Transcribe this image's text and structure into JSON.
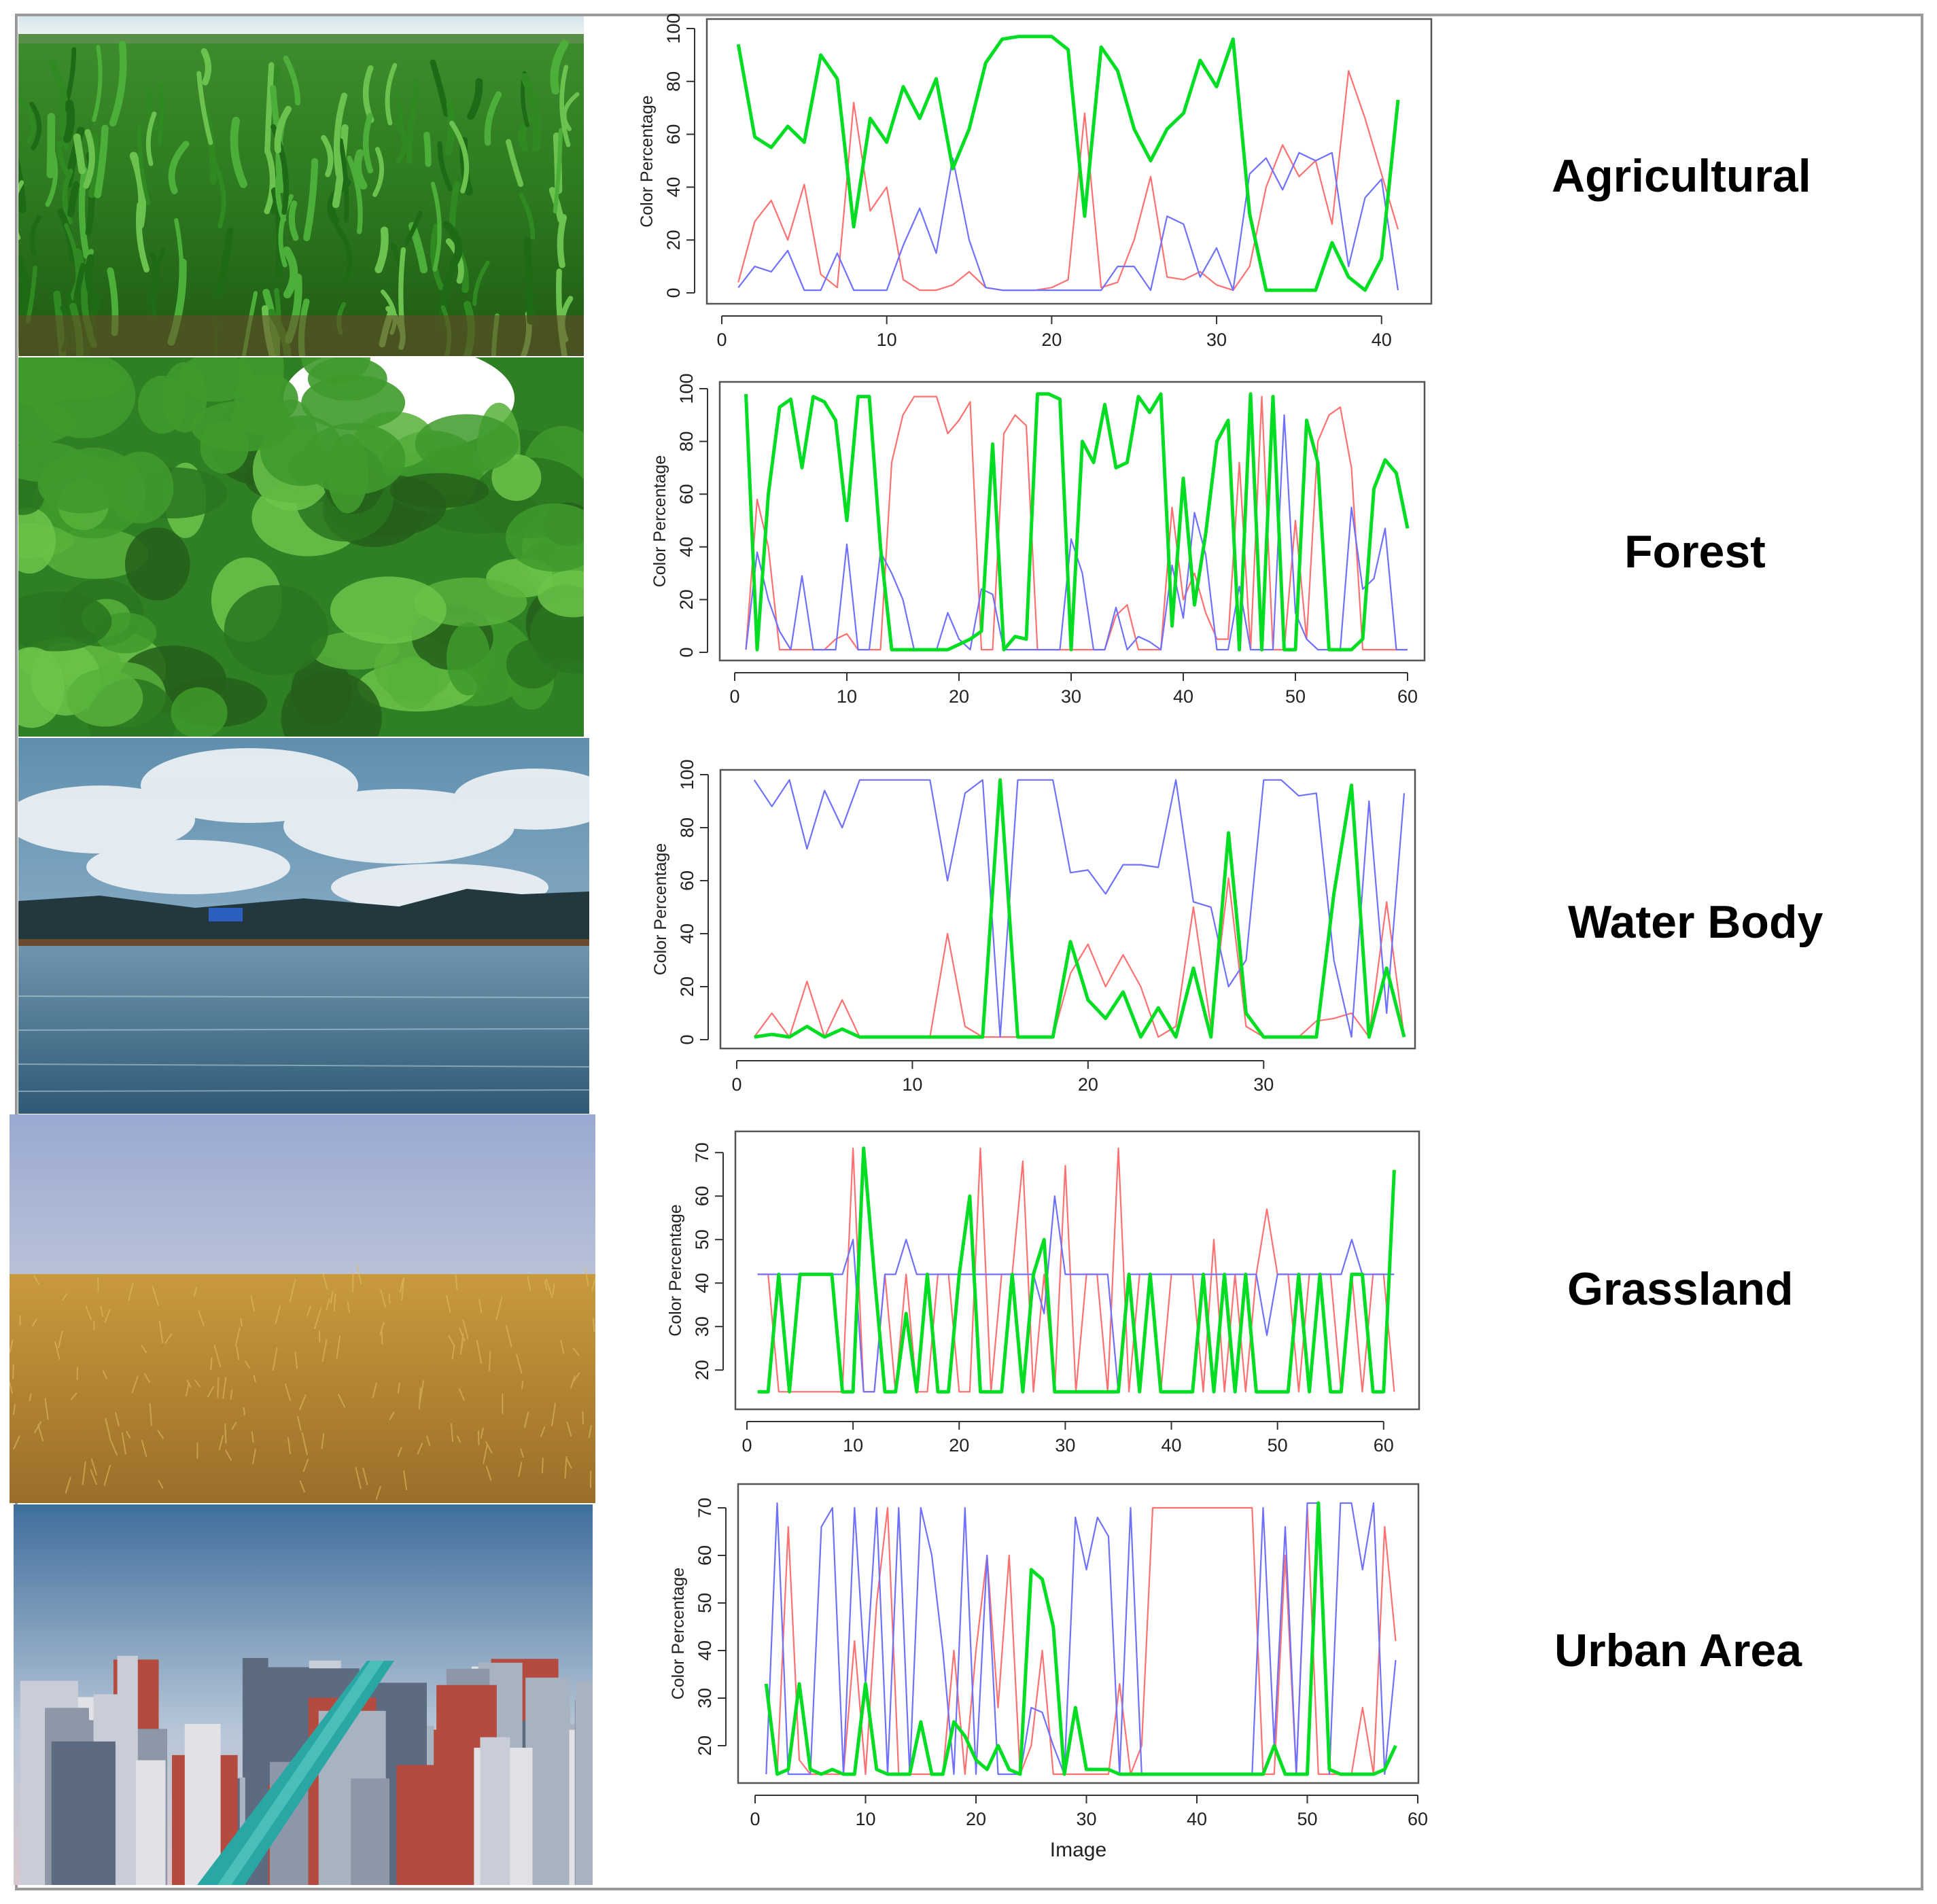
{
  "figure": {
    "row_labels": [
      "Agricultural",
      "Forest",
      "Water Body",
      "Grassland",
      "Urban Area"
    ],
    "y_axis_label": "Color Percentage",
    "x_axis_label": "Image"
  },
  "colors": {
    "red_series": "#ff7070",
    "green_series": "#00dd22",
    "blue_series": "#7070ff",
    "frame": "#9a9a9a"
  },
  "chart_data": [
    {
      "type": "line",
      "label": "Agricultural",
      "xlim": [
        0,
        41
      ],
      "ylim": [
        0,
        100
      ],
      "xticks": [
        0,
        10,
        20,
        30,
        40
      ],
      "yticks": [
        0,
        20,
        40,
        60,
        80,
        100
      ],
      "ylabel": "Color Percentage",
      "xlabel": "",
      "series": [
        {
          "color": "red",
          "values": [
            4,
            27,
            35,
            20,
            41,
            7,
            2,
            72,
            31,
            40,
            5,
            1,
            1,
            3,
            8,
            2,
            1,
            1,
            1,
            2,
            5,
            68,
            2,
            4,
            20,
            44,
            6,
            5,
            8,
            3,
            1,
            10,
            40,
            56,
            44,
            50,
            26,
            84,
            66,
            45,
            24
          ]
        },
        {
          "color": "green",
          "values": [
            94,
            59,
            55,
            63,
            57,
            90,
            81,
            25,
            66,
            57,
            78,
            66,
            81,
            47,
            62,
            87,
            96,
            97,
            97,
            97,
            92,
            29,
            93,
            84,
            62,
            50,
            62,
            68,
            88,
            78,
            96,
            30,
            1,
            1,
            1,
            1,
            19,
            6,
            1,
            13,
            73
          ]
        },
        {
          "color": "blue",
          "values": [
            2,
            10,
            8,
            16,
            1,
            1,
            15,
            1,
            1,
            1,
            18,
            32,
            15,
            51,
            20,
            2,
            1,
            1,
            1,
            1,
            1,
            1,
            1,
            10,
            10,
            1,
            29,
            26,
            6,
            17,
            1,
            45,
            51,
            39,
            53,
            50,
            53,
            10,
            36,
            43,
            1
          ]
        }
      ]
    },
    {
      "type": "line",
      "label": "Forest",
      "xlim": [
        0,
        60
      ],
      "ylim": [
        0,
        100
      ],
      "xticks": [
        0,
        10,
        20,
        30,
        40,
        50,
        60
      ],
      "yticks": [
        0,
        20,
        40,
        60,
        80,
        100
      ],
      "ylabel": "Color Percentage",
      "xlabel": "",
      "series": [
        {
          "color": "red",
          "values": [
            1,
            58,
            40,
            1,
            1,
            1,
            1,
            1,
            5,
            7,
            1,
            1,
            1,
            72,
            90,
            97,
            97,
            97,
            83,
            88,
            95,
            1,
            1,
            83,
            90,
            86,
            1,
            1,
            1,
            1,
            1,
            1,
            1,
            14,
            18,
            1,
            1,
            1,
            55,
            20,
            30,
            15,
            5,
            5,
            72,
            1,
            97,
            1,
            1,
            50,
            5,
            80,
            90,
            93,
            70,
            1,
            1,
            1,
            1,
            1
          ]
        },
        {
          "color": "green",
          "values": [
            98,
            1,
            60,
            93,
            96,
            70,
            97,
            95,
            88,
            50,
            97,
            97,
            40,
            1,
            1,
            1,
            1,
            1,
            1,
            3,
            5,
            8,
            79,
            1,
            6,
            5,
            98,
            98,
            96,
            1,
            80,
            72,
            94,
            70,
            72,
            97,
            91,
            98,
            10,
            66,
            18,
            45,
            80,
            88,
            1,
            98,
            1,
            97,
            1,
            1,
            88,
            72,
            1,
            1,
            1,
            5,
            62,
            73,
            68,
            47
          ]
        },
        {
          "color": "blue",
          "values": [
            1,
            38,
            20,
            8,
            1,
            29,
            1,
            1,
            1,
            41,
            1,
            1,
            38,
            30,
            20,
            1,
            1,
            1,
            15,
            5,
            1,
            24,
            22,
            1,
            1,
            1,
            1,
            1,
            1,
            43,
            30,
            1,
            1,
            17,
            1,
            6,
            4,
            1,
            33,
            13,
            53,
            37,
            1,
            1,
            25,
            1,
            1,
            1,
            90,
            15,
            5,
            1,
            1,
            1,
            55,
            24,
            28,
            47,
            1,
            1
          ]
        }
      ]
    },
    {
      "type": "line",
      "label": "Water Body",
      "xlim": [
        0,
        38
      ],
      "ylim": [
        0,
        100
      ],
      "xticks": [
        0,
        10,
        20,
        30
      ],
      "yticks": [
        0,
        20,
        40,
        60,
        80,
        100
      ],
      "ylabel": "Color Percentage",
      "xlabel": "",
      "series": [
        {
          "color": "red",
          "values": [
            1,
            10,
            1,
            22,
            1,
            15,
            1,
            1,
            1,
            1,
            1,
            40,
            5,
            1,
            1,
            1,
            1,
            1,
            25,
            36,
            20,
            32,
            20,
            1,
            5,
            50,
            5,
            61,
            5,
            1,
            1,
            1,
            7,
            8,
            10,
            1,
            52,
            1
          ]
        },
        {
          "color": "green",
          "values": [
            1,
            2,
            1,
            5,
            1,
            4,
            1,
            1,
            1,
            1,
            1,
            1,
            1,
            1,
            98,
            1,
            1,
            1,
            37,
            15,
            8,
            18,
            1,
            12,
            1,
            27,
            1,
            78,
            10,
            1,
            1,
            1,
            1,
            55,
            96,
            1,
            27,
            1
          ]
        },
        {
          "color": "blue",
          "values": [
            98,
            88,
            98,
            72,
            94,
            80,
            98,
            98,
            98,
            98,
            98,
            60,
            93,
            98,
            1,
            98,
            98,
            98,
            63,
            64,
            55,
            66,
            66,
            65,
            98,
            52,
            50,
            20,
            30,
            98,
            98,
            92,
            93,
            30,
            1,
            90,
            10,
            93
          ]
        }
      ]
    },
    {
      "type": "line",
      "label": "Grassland",
      "xlim": [
        0,
        62
      ],
      "ylim": [
        13,
        73
      ],
      "xticks": [
        0,
        10,
        20,
        30,
        40,
        50,
        60
      ],
      "yticks": [
        20,
        30,
        40,
        50,
        60,
        70
      ],
      "ylabel": "Color Percentage",
      "xlabel": "",
      "series": [
        {
          "color": "red",
          "values": [
            42,
            42,
            15,
            15,
            15,
            15,
            15,
            15,
            15,
            71,
            15,
            15,
            42,
            15,
            42,
            15,
            15,
            42,
            42,
            15,
            15,
            71,
            15,
            42,
            42,
            68,
            15,
            42,
            15,
            67,
            15,
            42,
            42,
            15,
            71,
            15,
            42,
            42,
            15,
            42,
            42,
            42,
            15,
            50,
            15,
            42,
            15,
            42,
            57,
            42,
            42,
            15,
            42,
            42,
            42,
            15,
            42,
            15,
            42,
            42,
            15
          ]
        },
        {
          "color": "green",
          "values": [
            15,
            15,
            42,
            15,
            42,
            42,
            42,
            42,
            15,
            15,
            71,
            42,
            15,
            15,
            33,
            15,
            42,
            15,
            15,
            42,
            60,
            15,
            15,
            15,
            42,
            15,
            42,
            50,
            15,
            15,
            15,
            15,
            15,
            15,
            15,
            42,
            15,
            42,
            15,
            15,
            15,
            15,
            42,
            15,
            42,
            15,
            42,
            15,
            15,
            15,
            15,
            42,
            15,
            42,
            15,
            15,
            42,
            42,
            15,
            15,
            66
          ]
        },
        {
          "color": "blue",
          "values": [
            42,
            42,
            42,
            42,
            42,
            42,
            42,
            42,
            42,
            50,
            15,
            15,
            42,
            42,
            50,
            42,
            42,
            42,
            42,
            42,
            42,
            42,
            42,
            42,
            42,
            42,
            42,
            33,
            60,
            42,
            42,
            42,
            42,
            42,
            15,
            42,
            42,
            42,
            42,
            42,
            42,
            42,
            42,
            42,
            42,
            42,
            42,
            42,
            28,
            42,
            42,
            42,
            42,
            42,
            42,
            42,
            50,
            42,
            42,
            42,
            42
          ]
        }
      ]
    },
    {
      "type": "line",
      "label": "Urban Area",
      "xlim": [
        0,
        60
      ],
      "ylim": [
        13,
        72
      ],
      "xticks": [
        0,
        10,
        20,
        30,
        40,
        50,
        60
      ],
      "yticks": [
        20,
        30,
        40,
        50,
        60,
        70
      ],
      "ylabel": "Color Percentage",
      "xlabel": "Image",
      "series": [
        {
          "color": "red",
          "values": [
            32,
            14,
            66,
            17,
            14,
            14,
            14,
            14,
            42,
            14,
            50,
            70,
            14,
            14,
            14,
            14,
            14,
            40,
            14,
            40,
            60,
            28,
            60,
            14,
            20,
            40,
            14,
            14,
            14,
            14,
            14,
            14,
            33,
            14,
            20,
            70,
            70,
            70,
            70,
            70,
            70,
            70,
            70,
            70,
            70,
            14,
            14,
            60,
            14,
            70,
            14,
            14,
            14,
            14,
            28,
            14,
            66,
            42
          ]
        },
        {
          "color": "green",
          "values": [
            33,
            14,
            15,
            33,
            15,
            14,
            15,
            14,
            14,
            33,
            15,
            14,
            14,
            14,
            25,
            14,
            14,
            25,
            22,
            17,
            15,
            20,
            15,
            14,
            57,
            55,
            45,
            14,
            28,
            15,
            15,
            15,
            14,
            14,
            14,
            14,
            14,
            14,
            14,
            14,
            14,
            14,
            14,
            14,
            14,
            14,
            20,
            14,
            14,
            14,
            71,
            15,
            14,
            14,
            14,
            14,
            15,
            20
          ]
        },
        {
          "color": "blue",
          "values": [
            14,
            71,
            14,
            14,
            14,
            66,
            70,
            14,
            70,
            33,
            70,
            14,
            70,
            14,
            70,
            60,
            40,
            14,
            70,
            14,
            60,
            14,
            14,
            14,
            28,
            27,
            20,
            14,
            68,
            57,
            68,
            64,
            14,
            70,
            14,
            14,
            14,
            14,
            14,
            14,
            14,
            14,
            14,
            14,
            14,
            70,
            20,
            66,
            14,
            71,
            71,
            14,
            71,
            71,
            57,
            71,
            14,
            38
          ]
        }
      ]
    }
  ]
}
